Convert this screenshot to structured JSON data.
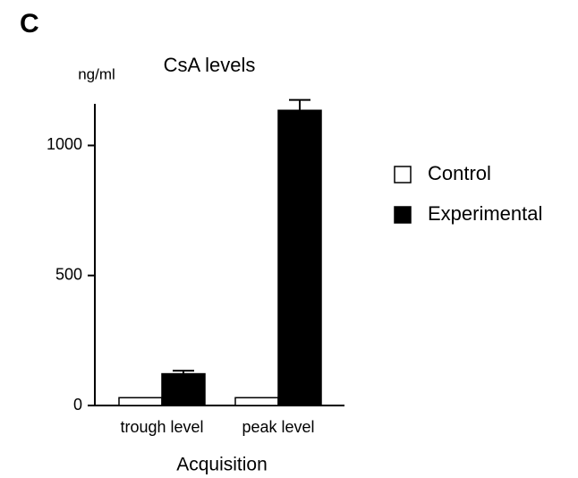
{
  "chart_data": {
    "type": "bar",
    "panel_label": "C",
    "title": "CsA levels",
    "y_label": "ng/ml",
    "x_label": "Acquisition",
    "categories": [
      "trough level",
      "peak level"
    ],
    "series": [
      {
        "name": "Control",
        "color": "#ffffff",
        "values": [
          30,
          30
        ]
      },
      {
        "name": "Experimental",
        "color": "#000000",
        "values": [
          122,
          1135
        ],
        "errors": [
          12,
          40
        ]
      }
    ],
    "ylim": [
      0,
      1160
    ],
    "yticks": [
      0,
      500,
      1000
    ],
    "grid": false,
    "legend": "right"
  }
}
